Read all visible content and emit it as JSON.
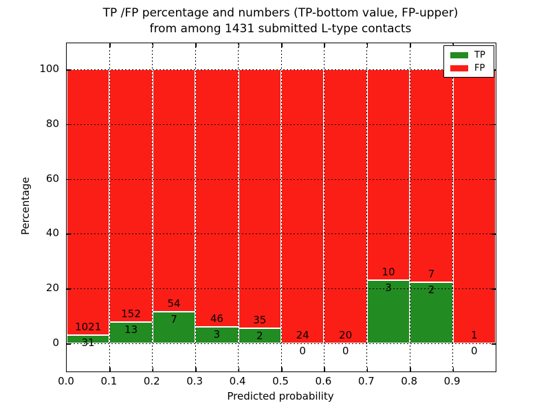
{
  "title": {
    "line1": "TP /FP percentage and numbers (TP-bottom value, FP-upper)",
    "line2": "from among 1431 submitted L-type contacts"
  },
  "axes": {
    "xlabel": "Predicted probability",
    "ylabel": "Percentage",
    "x_tick_labels": [
      "0.0",
      "0.1",
      "0.2",
      "0.3",
      "0.4",
      "0.5",
      "0.6",
      "0.7",
      "0.8",
      "0.9"
    ],
    "y_tick_labels": [
      "0",
      "20",
      "40",
      "60",
      "80",
      "100"
    ],
    "y_tick_values": [
      0,
      20,
      40,
      60,
      80,
      100
    ]
  },
  "legend": {
    "items": [
      {
        "label": "TP",
        "color": "#228b22"
      },
      {
        "label": "FP",
        "color": "#fb1e17"
      }
    ]
  },
  "chart_data": {
    "type": "bar",
    "stacked": true,
    "normalized_to_percent": true,
    "title": "TP /FP percentage and numbers (TP-bottom value, FP-upper) from among 1431 submitted L-type contacts",
    "xlabel": "Predicted probability",
    "ylabel": "Percentage",
    "xlim": [
      0.0,
      1.0
    ],
    "ylim": [
      -10,
      110
    ],
    "grid": "dotted",
    "legend_position": "upper right",
    "total_contacts": 1431,
    "bin_width": 0.1,
    "bins": [
      {
        "x0": 0.0,
        "x1": 0.1,
        "tp": 31,
        "fp": 1021,
        "tp_pct": 2.9
      },
      {
        "x0": 0.1,
        "x1": 0.2,
        "tp": 13,
        "fp": 152,
        "tp_pct": 7.9
      },
      {
        "x0": 0.2,
        "x1": 0.3,
        "tp": 7,
        "fp": 54,
        "tp_pct": 11.5
      },
      {
        "x0": 0.3,
        "x1": 0.4,
        "tp": 3,
        "fp": 46,
        "tp_pct": 6.1
      },
      {
        "x0": 0.4,
        "x1": 0.5,
        "tp": 2,
        "fp": 35,
        "tp_pct": 5.4
      },
      {
        "x0": 0.5,
        "x1": 0.6,
        "tp": 0,
        "fp": 24,
        "tp_pct": 0.0
      },
      {
        "x0": 0.6,
        "x1": 0.7,
        "tp": 0,
        "fp": 20,
        "tp_pct": 0.0
      },
      {
        "x0": 0.7,
        "x1": 0.8,
        "tp": 3,
        "fp": 10,
        "tp_pct": 23.1
      },
      {
        "x0": 0.8,
        "x1": 0.9,
        "tp": 2,
        "fp": 7,
        "tp_pct": 22.2
      },
      {
        "x0": 0.9,
        "x1": 1.0,
        "tp": 0,
        "fp": 1,
        "tp_pct": 0.0
      }
    ],
    "series": [
      {
        "name": "TP",
        "color": "#228b22",
        "values": [
          31,
          13,
          7,
          3,
          2,
          0,
          0,
          3,
          2,
          0
        ]
      },
      {
        "name": "FP",
        "color": "#fb1e17",
        "values": [
          1021,
          152,
          54,
          46,
          35,
          24,
          20,
          10,
          7,
          1
        ]
      }
    ]
  }
}
